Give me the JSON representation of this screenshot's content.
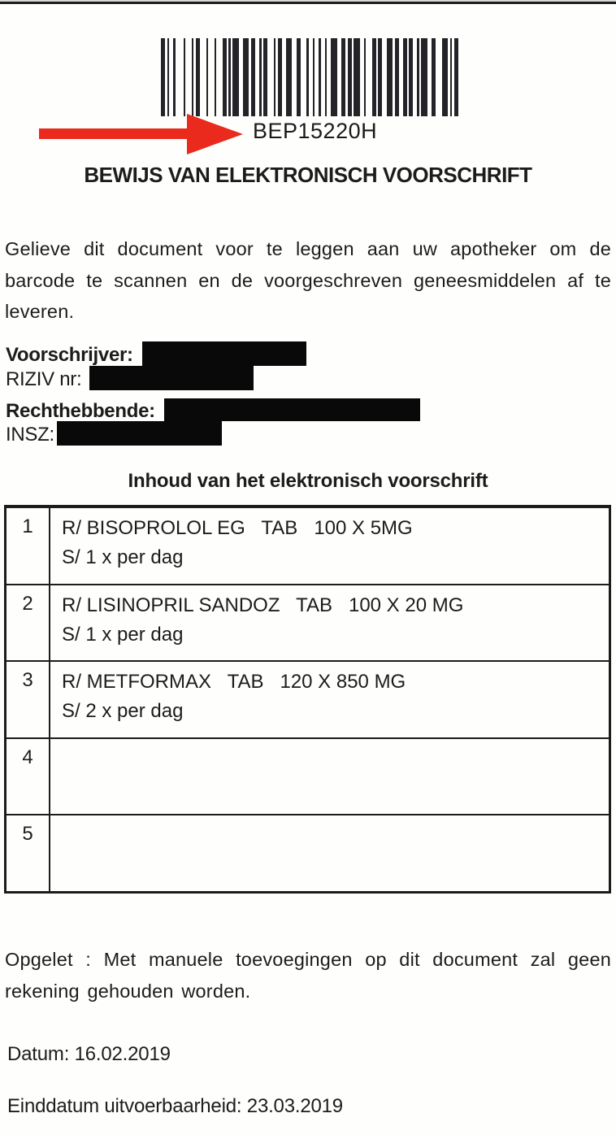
{
  "page": {
    "barcode": {
      "value": "BEP15220H",
      "pattern": [
        2,
        1,
        1,
        2,
        1,
        4,
        1,
        3,
        1,
        1,
        2,
        3,
        1,
        3,
        1,
        3,
        2,
        1,
        1,
        1,
        3,
        2,
        3,
        1,
        2,
        2,
        1,
        1,
        2,
        3,
        1,
        1,
        2,
        2,
        3,
        2,
        2,
        3,
        1,
        2,
        1,
        2,
        1,
        2,
        1,
        2,
        3,
        2,
        2,
        1,
        2,
        1,
        3,
        2,
        1,
        3,
        2,
        1,
        2,
        2,
        3,
        1,
        2,
        2,
        2,
        1,
        2,
        2,
        1,
        1,
        3,
        2,
        2,
        3,
        3,
        1,
        1,
        1,
        2
      ]
    },
    "title": "BEWIJS VAN ELEKTRONISCH VOORSCHRIFT",
    "intro": "Gelieve dit document voor te leggen aan uw apotheker om de barcode te scannen en de voorgeschreven geneesmiddelen af te leveren.",
    "prescriber_label": "Voorschrijver:",
    "riziv_label": "RIZIV nr:",
    "beneficiary_label": "Rechthebbende:",
    "insz_label": "INSZ:",
    "table": {
      "heading": "Inhoud van het elektronisch voorschrift",
      "rows": [
        {
          "num": "1",
          "medication": "R/ BISOPROLOL EG   TAB   100 X 5MG",
          "dosage": "S/ 1 x per dag"
        },
        {
          "num": "2",
          "medication": "R/ LISINOPRIL SANDOZ   TAB   100 X 20 MG",
          "dosage": "S/ 1 x per dag"
        },
        {
          "num": "3",
          "medication": "R/ METFORMAX   TAB   120 X 850 MG",
          "dosage": "S/ 2 x per dag"
        },
        {
          "num": "4",
          "medication": "",
          "dosage": ""
        },
        {
          "num": "5",
          "medication": "",
          "dosage": ""
        }
      ]
    },
    "warning": "Opgelet : Met manuele toevoegingen op dit document zal geen rekening gehouden worden.",
    "date_label": "Datum:",
    "date_value": "16.02.2019",
    "end_date_label": "Einddatum uitvoerbaarheid:",
    "end_date_value": "23.03.2019",
    "colors": {
      "arrow_red": "#e92a1c",
      "ink": "#1c1c1c"
    }
  }
}
